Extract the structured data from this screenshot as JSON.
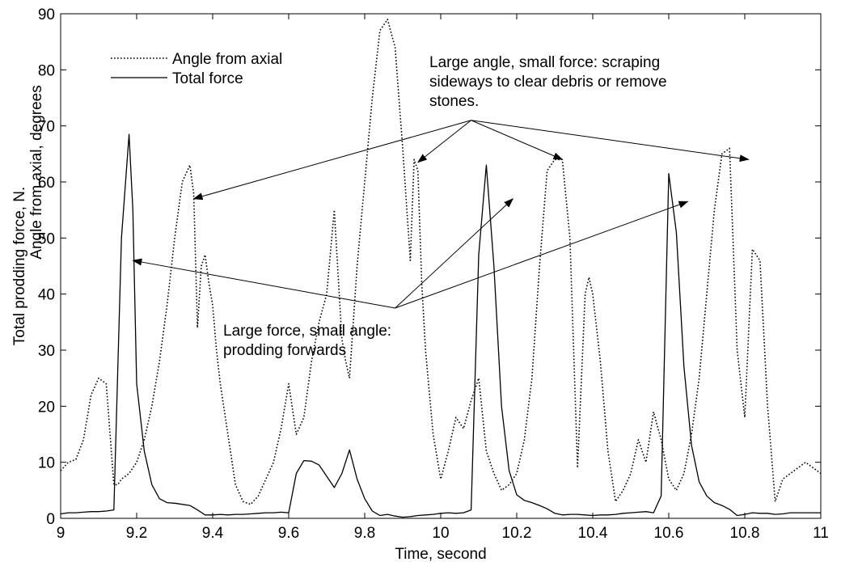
{
  "chart_data": {
    "type": "line",
    "title": "",
    "xlabel": "Time, second",
    "ylabel_line1": "Total prodding force, N.",
    "ylabel_line2": "Angle from axial, degrees",
    "xlim": [
      9,
      11
    ],
    "ylim": [
      0,
      90
    ],
    "grid": false,
    "legend_position": "top-left",
    "x_ticks": [
      "9",
      "9.2",
      "9.4",
      "9.6",
      "9.8",
      "10",
      "10.2",
      "10.4",
      "10.6",
      "10.8",
      "11"
    ],
    "y_ticks": [
      "0",
      "10",
      "20",
      "30",
      "40",
      "50",
      "60",
      "70",
      "80",
      "90"
    ],
    "series": [
      {
        "name": "Angle from axial",
        "style": "dotted",
        "color": "#000000",
        "x": [
          9.0,
          9.02,
          9.04,
          9.06,
          9.08,
          9.1,
          9.12,
          9.14,
          9.15,
          9.16,
          9.18,
          9.2,
          9.22,
          9.24,
          9.26,
          9.28,
          9.3,
          9.32,
          9.34,
          9.35,
          9.36,
          9.37,
          9.38,
          9.39,
          9.4,
          9.41,
          9.42,
          9.44,
          9.46,
          9.48,
          9.5,
          9.52,
          9.54,
          9.56,
          9.58,
          9.6,
          9.62,
          9.64,
          9.66,
          9.68,
          9.7,
          9.72,
          9.74,
          9.75,
          9.76,
          9.78,
          9.8,
          9.82,
          9.84,
          9.86,
          9.88,
          9.9,
          9.92,
          9.93,
          9.94,
          9.95,
          9.96,
          9.98,
          10.0,
          10.02,
          10.04,
          10.06,
          10.08,
          10.1,
          10.12,
          10.14,
          10.16,
          10.18,
          10.2,
          10.22,
          10.24,
          10.26,
          10.28,
          10.3,
          10.32,
          10.34,
          10.36,
          10.38,
          10.39,
          10.4,
          10.42,
          10.44,
          10.46,
          10.48,
          10.5,
          10.52,
          10.54,
          10.56,
          10.58,
          10.6,
          10.62,
          10.64,
          10.66,
          10.68,
          10.7,
          10.72,
          10.74,
          10.76,
          10.78,
          10.8,
          10.82,
          10.84,
          10.86,
          10.88,
          10.9,
          10.92,
          10.94,
          10.96,
          10.98,
          11.0
        ],
        "values": [
          8.5,
          10,
          10.5,
          14,
          22,
          25,
          24,
          6,
          6,
          7,
          8,
          10,
          14,
          20,
          28,
          38,
          50,
          60,
          63,
          58,
          34,
          45,
          47,
          42,
          38,
          30,
          24,
          15,
          6,
          3,
          2.5,
          4,
          7,
          10,
          16,
          24,
          15,
          18,
          28,
          35,
          40,
          55,
          32,
          28,
          25,
          45,
          60,
          75,
          87,
          89,
          84,
          66,
          46,
          64,
          62,
          42,
          30,
          15,
          7,
          12,
          18,
          16,
          21,
          25,
          12,
          8,
          5,
          6,
          8,
          14,
          25,
          45,
          62,
          64,
          64,
          50,
          9,
          40,
          43,
          40,
          28,
          12,
          3,
          5,
          8,
          14,
          10,
          19,
          14,
          7,
          5,
          8,
          15,
          25,
          40,
          55,
          65,
          66,
          30,
          18,
          48,
          46,
          20,
          3,
          7,
          8,
          9,
          10,
          9,
          8
        ]
      },
      {
        "name": "Total force",
        "style": "solid",
        "color": "#000000",
        "x": [
          9.0,
          9.02,
          9.04,
          9.06,
          9.08,
          9.1,
          9.12,
          9.14,
          9.16,
          9.18,
          9.19,
          9.2,
          9.22,
          9.24,
          9.26,
          9.28,
          9.3,
          9.32,
          9.34,
          9.36,
          9.38,
          9.4,
          9.42,
          9.44,
          9.46,
          9.48,
          9.5,
          9.52,
          9.54,
          9.56,
          9.58,
          9.6,
          9.62,
          9.64,
          9.66,
          9.68,
          9.7,
          9.72,
          9.74,
          9.76,
          9.78,
          9.8,
          9.82,
          9.84,
          9.86,
          9.88,
          9.9,
          9.92,
          9.94,
          9.96,
          9.98,
          10.0,
          10.02,
          10.04,
          10.06,
          10.08,
          10.1,
          10.12,
          10.14,
          10.16,
          10.18,
          10.2,
          10.22,
          10.24,
          10.26,
          10.28,
          10.3,
          10.32,
          10.34,
          10.36,
          10.38,
          10.4,
          10.42,
          10.44,
          10.46,
          10.48,
          10.5,
          10.52,
          10.54,
          10.56,
          10.58,
          10.6,
          10.62,
          10.64,
          10.66,
          10.68,
          10.7,
          10.72,
          10.74,
          10.76,
          10.78,
          10.8,
          10.82,
          10.84,
          10.86,
          10.88,
          10.9,
          10.92,
          10.94,
          10.96,
          10.98,
          11.0
        ],
        "values": [
          0.8,
          1.0,
          1.0,
          1.1,
          1.2,
          1.2,
          1.3,
          1.5,
          50,
          68.5,
          55,
          24,
          12,
          6,
          3.5,
          2.8,
          2.7,
          2.5,
          2.3,
          1.5,
          0.6,
          0.6,
          0.7,
          0.6,
          0.7,
          0.7,
          0.8,
          0.9,
          1.0,
          1.0,
          1.1,
          1.0,
          8,
          10.3,
          10.2,
          9.5,
          7.5,
          5.5,
          8,
          12.2,
          7,
          3.5,
          1.3,
          0.5,
          0.7,
          0.4,
          0.2,
          0.3,
          0.5,
          0.6,
          0.7,
          0.9,
          1.0,
          0.9,
          1.0,
          1.5,
          47,
          63,
          45,
          20,
          8.5,
          4.2,
          3.2,
          2.8,
          2.3,
          1.7,
          0.9,
          0.6,
          0.7,
          0.7,
          0.6,
          0.5,
          0.6,
          0.6,
          0.7,
          0.9,
          1.0,
          1.1,
          1.2,
          1.0,
          4,
          61.5,
          51,
          27,
          13,
          6.5,
          4,
          2.8,
          2.3,
          1.6,
          0.5,
          0.7,
          1.0,
          0.9,
          0.9,
          0.7,
          0.8,
          1.0,
          1.0,
          1.0,
          1.0,
          1.0
        ]
      }
    ],
    "annotations": [
      {
        "lines": [
          "Large angle, small force: scraping",
          "sideways to clear debris or remove",
          "stones."
        ],
        "origin": [
          10.08,
          71
        ],
        "targets": [
          [
            9.35,
            57
          ],
          [
            9.94,
            63.5
          ],
          [
            10.32,
            64
          ],
          [
            10.81,
            64
          ]
        ]
      },
      {
        "lines": [
          "Large force, small angle:",
          "prodding forwards"
        ],
        "origin": [
          9.88,
          37.5
        ],
        "targets": [
          [
            9.19,
            46
          ],
          [
            10.19,
            57
          ],
          [
            10.65,
            56.5
          ]
        ]
      }
    ]
  }
}
